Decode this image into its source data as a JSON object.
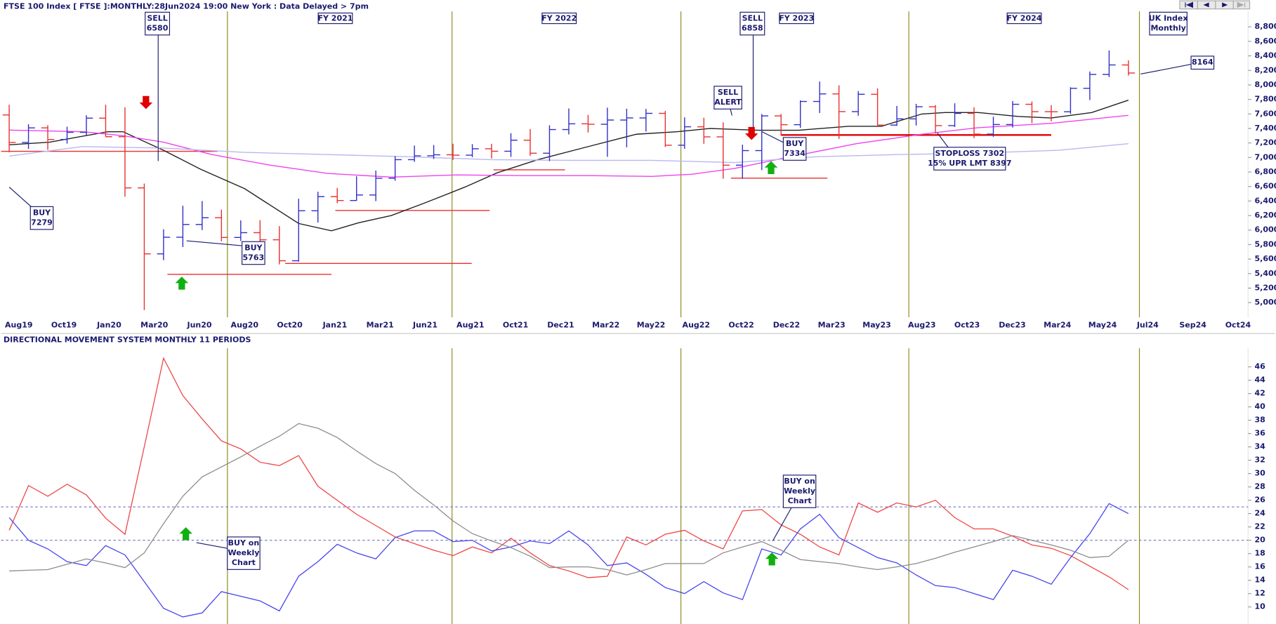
{
  "chart_data": [
    {
      "type": "ohlc",
      "title": "FTSE 100 Index [ FTSE ]:MONTHLY:28Jun2024 19:00 New York : Data Delayed > 7pm",
      "open": [
        7586,
        7207,
        7408,
        7248,
        7347,
        7542,
        7286,
        6581,
        5672,
        5901,
        6077,
        6170,
        5898,
        5964,
        5866,
        5577,
        6266,
        6461,
        6407,
        6483,
        6714,
        6970,
        7023,
        7037,
        7032,
        7120,
        7086,
        7238,
        7059,
        7385,
        7464,
        7458,
        7516,
        7545,
        7608,
        7169,
        7423,
        7284,
        6894,
        7095,
        7573,
        7452,
        7772,
        7876,
        7632,
        7871,
        7446,
        7532,
        7699,
        7439,
        7608,
        7322,
        7454,
        7733,
        7631,
        7630,
        7953,
        8144,
        8275
      ],
      "high": [
        7727,
        7458,
        7445,
        7424,
        7582,
        7727,
        7690,
        6641,
        6011,
        6335,
        6400,
        6282,
        6133,
        6136,
        6054,
        6432,
        6528,
        6580,
        6740,
        6820,
        7019,
        7164,
        7172,
        7189,
        7184,
        7189,
        7335,
        7393,
        7444,
        7676,
        7586,
        7687,
        7672,
        7669,
        7643,
        7552,
        7548,
        7484,
        7176,
        7599,
        7599,
        7786,
        8047,
        7994,
        7915,
        7952,
        7710,
        7739,
        7723,
        7747,
        7691,
        7563,
        7778,
        7772,
        7722,
        7968,
        8185,
        8474,
        8338
      ],
      "low": [
        7073,
        7119,
        7106,
        7191,
        7303,
        7285,
        6460,
        4898,
        5585,
        5766,
        6000,
        5844,
        5848,
        5795,
        5526,
        5565,
        6104,
        6370,
        6403,
        6399,
        6680,
        6940,
        6980,
        6966,
        7004,
        6985,
        7008,
        7022,
        6950,
        7318,
        7344,
        7010,
        7140,
        7357,
        7144,
        7120,
        7189,
        6708,
        6707,
        6826,
        7302,
        7409,
        7613,
        7256,
        7575,
        7443,
        7436,
        7441,
        7331,
        7420,
        7267,
        7285,
        7413,
        7474,
        7498,
        7600,
        7791,
        8108,
        8129
      ],
      "close": [
        7207,
        7408,
        7248,
        7347,
        7542,
        7286,
        6581,
        5672,
        5901,
        6077,
        6170,
        5898,
        5964,
        5866,
        5577,
        6266,
        6461,
        6407,
        6483,
        6714,
        6970,
        7023,
        7037,
        7032,
        7120,
        7086,
        7238,
        7059,
        7385,
        7464,
        7458,
        7516,
        7545,
        7608,
        7169,
        7423,
        7284,
        6894,
        7095,
        7573,
        7452,
        7772,
        7876,
        7632,
        7871,
        7446,
        7532,
        7699,
        7439,
        7608,
        7322,
        7454,
        7733,
        7631,
        7630,
        7953,
        8144,
        8275,
        8164
      ],
      "up_color": "#3030c8",
      "down_color": "#e83030",
      "series": [
        {
          "color": "#222222",
          "x": [
            0,
            2.1,
            5.1,
            5.9,
            8.0,
            9.9,
            12.2,
            15.0,
            16.7,
            18.1,
            19.8,
            21.5,
            23.6,
            25.3,
            27.4,
            30.0,
            32.5,
            34.6,
            36.3,
            38.8,
            40.9,
            43.5,
            45.2,
            47.3,
            48.5,
            50.2,
            52.3,
            54.0,
            56.1,
            58.0
          ],
          "values": [
            7175,
            7210,
            7355,
            7355,
            7100,
            6840,
            6570,
            6090,
            5990,
            6100,
            6200,
            6370,
            6590,
            6790,
            6970,
            7150,
            7320,
            7355,
            7400,
            7375,
            7375,
            7430,
            7430,
            7600,
            7620,
            7620,
            7565,
            7545,
            7620,
            7790
          ]
        },
        {
          "color": "#ee44ee",
          "x": [
            0,
            3.8,
            5.9,
            8.0,
            10.5,
            13.5,
            16.5,
            19.8,
            23.2,
            26.6,
            30,
            33.3,
            35.4,
            37.6,
            40.1,
            43.9,
            47.3,
            50.2,
            54,
            58
          ],
          "values": [
            7377,
            7355,
            7300,
            7210,
            7040,
            6895,
            6780,
            6730,
            6760,
            6750,
            6750,
            6740,
            6770,
            6850,
            6990,
            7190,
            7320,
            7410,
            7470,
            7580
          ]
        },
        {
          "color": "#b8b8f0",
          "x": [
            0,
            3.8,
            8.0,
            12.2,
            16.5,
            20.7,
            24.9,
            29.1,
            33.3,
            37.6,
            41.8,
            46,
            50.2,
            54.4,
            58
          ],
          "values": [
            7020,
            7150,
            7130,
            7070,
            7040,
            7010,
            6970,
            6960,
            6960,
            6930,
            7010,
            7040,
            7060,
            7100,
            7190
          ]
        }
      ],
      "levels": [
        {
          "x": [
            -0.42,
            10.8
          ],
          "value": 7085,
          "color": "#e83030"
        },
        {
          "x": [
            8.2,
            16.7
          ],
          "value": 5390,
          "color": "#e83030"
        },
        {
          "x": [
            14.3,
            23.97
          ],
          "value": 5540,
          "color": "#e83030"
        },
        {
          "x": [
            16.9,
            24.9
          ],
          "value": 6270,
          "color": "#e83030"
        },
        {
          "x": [
            25.1,
            28.8
          ],
          "value": 6830,
          "color": "#e83030"
        },
        {
          "x": [
            37.4,
            42.4
          ],
          "value": 6715,
          "color": "#e83030"
        },
        {
          "x": [
            40.0,
            54.0
          ],
          "value": 7310,
          "color": "#e00000"
        }
      ],
      "period_lines": [
        11.31,
        22.95,
        34.81,
        46.62,
        58.57
      ],
      "period_labels": [
        {
          "text": "FY 2021",
          "x": 16.9
        },
        {
          "text": "FY 2022",
          "x": 28.5
        },
        {
          "text": "FY 2023",
          "x": 40.8
        },
        {
          "text": "FY 2024",
          "x": 52.6
        }
      ],
      "annotations": [
        {
          "lines": [
            "SELL",
            "6580"
          ]
        },
        {
          "lines": [
            "SELL",
            "6858"
          ]
        },
        {
          "lines": [
            "BUY",
            "7279"
          ]
        },
        {
          "lines": [
            "BUY",
            "5763"
          ]
        },
        {
          "lines": [
            "SELL",
            "ALERT"
          ]
        },
        {
          "lines": [
            "BUY",
            "7334"
          ]
        },
        {
          "lines": [
            "STOPLOSS 7302",
            "15% UPR LMT 8397"
          ]
        },
        {
          "lines": [
            "UK Index",
            "Monthly"
          ]
        },
        {
          "lines": [
            "8164"
          ]
        }
      ],
      "xlim": [
        -0.42,
        64.2
      ],
      "xticks": [
        {
          "value": 0.5,
          "label": "Aug19"
        },
        {
          "value": 2.84,
          "label": "Oct19"
        },
        {
          "value": 5.18,
          "label": "Jan20"
        },
        {
          "value": 7.52,
          "label": "Mar20"
        },
        {
          "value": 9.86,
          "label": "Jun20"
        },
        {
          "value": 12.2,
          "label": "Aug20"
        },
        {
          "value": 14.54,
          "label": "Oct20"
        },
        {
          "value": 16.88,
          "label": "Jan21"
        },
        {
          "value": 19.22,
          "label": "Mar21"
        },
        {
          "value": 21.56,
          "label": "Jun21"
        },
        {
          "value": 23.9,
          "label": "Aug21"
        },
        {
          "value": 26.24,
          "label": "Oct21"
        },
        {
          "value": 28.58,
          "label": "Dec21"
        },
        {
          "value": 30.92,
          "label": "Mar22"
        },
        {
          "value": 33.26,
          "label": "May22"
        },
        {
          "value": 35.6,
          "label": "Aug22"
        },
        {
          "value": 37.94,
          "label": "Oct22"
        },
        {
          "value": 40.28,
          "label": "Dec22"
        },
        {
          "value": 42.62,
          "label": "Mar23"
        },
        {
          "value": 44.96,
          "label": "May23"
        },
        {
          "value": 47.3,
          "label": "Aug23"
        },
        {
          "value": 49.64,
          "label": "Oct23"
        },
        {
          "value": 51.98,
          "label": "Dec23"
        },
        {
          "value": 54.32,
          "label": "Mar24"
        },
        {
          "value": 56.66,
          "label": "May24"
        },
        {
          "value": 59.0,
          "label": "Jul24"
        },
        {
          "value": 61.34,
          "label": "Sep24"
        },
        {
          "value": 63.68,
          "label": "Oct24"
        }
      ],
      "ylim": [
        4798,
        9170
      ],
      "yticks": [
        {
          "value": 5000,
          "label": "5,000"
        },
        {
          "value": 5200,
          "label": "5,200"
        },
        {
          "value": 5400,
          "label": "5,400"
        },
        {
          "value": 5600,
          "label": "5,600"
        },
        {
          "value": 5800,
          "label": "5,800"
        },
        {
          "value": 6000,
          "label": "6,000"
        },
        {
          "value": 6200,
          "label": "6,200"
        },
        {
          "value": 6400,
          "label": "6,400"
        },
        {
          "value": 6600,
          "label": "6,600"
        },
        {
          "value": 6800,
          "label": "6,800"
        },
        {
          "value": 7000,
          "label": "7,000"
        },
        {
          "value": 7200,
          "label": "7,200"
        },
        {
          "value": 7400,
          "label": "7,400"
        },
        {
          "value": 7600,
          "label": "7,600"
        },
        {
          "value": 7800,
          "label": "7,800"
        },
        {
          "value": 8000,
          "label": "8,000"
        },
        {
          "value": 8200,
          "label": "8,200"
        },
        {
          "value": 8400,
          "label": "8,400"
        },
        {
          "value": 8600,
          "label": "8,600"
        },
        {
          "value": 8800,
          "label": "8,800"
        }
      ]
    },
    {
      "type": "line",
      "title": "DIRECTIONAL MOVEMENT SYSTEM MONTHLY 11 PERIODS",
      "series": [
        {
          "color": "#ee4444",
          "values": [
            21.5,
            28.2,
            26.6,
            28.4,
            26.8,
            23.3,
            20.9,
            34,
            47.3,
            41.7,
            38.2,
            34.9,
            33.7,
            31.7,
            31.2,
            32.7,
            28.1,
            26.0,
            23.9,
            22.2,
            20.5,
            19.5,
            18.5,
            17.7,
            19.0,
            18.1,
            20.3,
            18.1,
            16.2,
            15.4,
            14.4,
            14.6,
            20.5,
            19.3,
            20.9,
            21.5,
            19.9,
            18.7,
            24.4,
            24.6,
            22.3,
            20.9,
            19.0,
            17.8,
            25.6,
            24.2,
            25.6,
            25.0,
            26.0,
            23.4,
            21.7,
            21.7,
            20.6,
            19.3,
            18.8,
            17.7,
            16.1,
            14.5,
            12.6
          ]
        },
        {
          "color": "#4444ee",
          "values": [
            23.4,
            20.0,
            18.7,
            16.8,
            16.2,
            19.2,
            17.8,
            13.8,
            9.8,
            8.5,
            9.1,
            12.3,
            11.6,
            10.9,
            9.4,
            14.6,
            16.8,
            19.4,
            18.1,
            17.2,
            20.4,
            21.4,
            21.4,
            19.8,
            20.0,
            18.4,
            19.0,
            19.9,
            19.5,
            21.4,
            19.3,
            16.2,
            16.6,
            14.9,
            12.9,
            12.0,
            13.8,
            12.1,
            11.1,
            18.7,
            17.8,
            21.7,
            23.9,
            20.4,
            18.9,
            17.4,
            16.6,
            14.8,
            13.2,
            12.9,
            12.0,
            11.1,
            15.5,
            14.6,
            13.4,
            17.4,
            21.0,
            25.5,
            24.0
          ]
        },
        {
          "color": "#8c8c8c",
          "values": [
            15.4,
            15.5,
            15.6,
            16.4,
            17.2,
            16.6,
            15.9,
            18.1,
            22.5,
            26.6,
            29.5,
            31.0,
            32.5,
            34.1,
            35.6,
            37.5,
            36.8,
            35.4,
            33.4,
            31.5,
            30.0,
            27.5,
            25.3,
            22.9,
            21.0,
            19.9,
            18.9,
            17.6,
            15.9,
            16.0,
            16.0,
            15.6,
            14.8,
            15.6,
            16.5,
            16.5,
            16.5,
            18.1,
            19.0,
            19.8,
            18.5,
            17.1,
            16.8,
            16.5,
            16.0,
            15.6,
            16.0,
            16.5,
            17.3,
            18.2,
            19.0,
            19.8,
            20.7,
            20.0,
            19.3,
            18.5,
            17.4,
            17.6,
            20.0
          ]
        }
      ],
      "levels": [
        25,
        20
      ],
      "period_lines": [
        11.31,
        22.95,
        34.81,
        46.62,
        58.57
      ],
      "annotations": [
        {
          "lines": [
            "BUY on",
            "Weekly",
            "Chart"
          ]
        },
        {
          "lines": [
            "BUY on",
            "Weekly",
            "Chart"
          ]
        }
      ],
      "xlim": [
        -0.42,
        64.2
      ],
      "ylim": [
        7.44,
        48.8
      ],
      "yticks": [
        10,
        12,
        14,
        16,
        18,
        20,
        22,
        24,
        26,
        28,
        30,
        32,
        34,
        36,
        38,
        40,
        42,
        44,
        46
      ]
    }
  ]
}
